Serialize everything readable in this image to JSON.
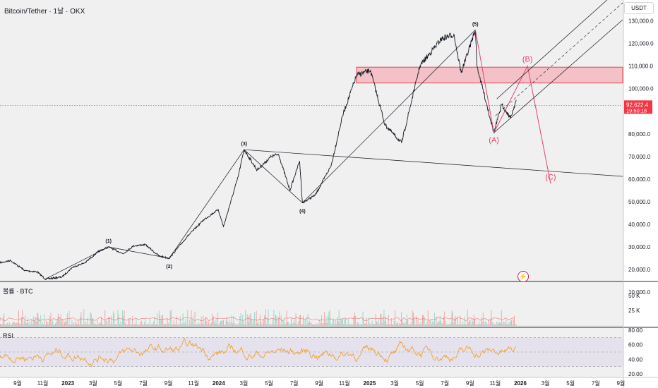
{
  "header": {
    "title": "Bitcoin/Tether · 1날 · OKX",
    "currency": "USDT"
  },
  "panes": {
    "volume_label": "볼륨 · BTC",
    "rsi_label": "RSI"
  },
  "colors": {
    "price": "#131722",
    "zone_fill": "#f3b8bf",
    "zone_border": "#e0464f",
    "corrective": "#e8436b",
    "rsi_line": "#f59b1a",
    "rsi_band": "#e0dcec",
    "last_price_bg": "#f23645",
    "logo": "#c2185b"
  },
  "chart_data": [
    {
      "type": "line",
      "name": "BTCUSDT price",
      "title": "Bitcoin/Tether · 1날 · OKX",
      "x_ticks": [
        "9월",
        "11월",
        "2023",
        "3월",
        "5월",
        "7월",
        "9월",
        "11월",
        "2024",
        "3월",
        "5월",
        "7월",
        "9월",
        "11월",
        "2025",
        "3월",
        "5월",
        "7월",
        "9월",
        "11월",
        "2026",
        "3월",
        "5월",
        "7월",
        "9월"
      ],
      "y_ticks": [
        "130,000.0",
        "120,000.0",
        "110,000.0",
        "100,000.0",
        "90,000.0",
        "80,000.0",
        "70,000.0",
        "60,000.0",
        "50,000.0",
        "40,000.0",
        "30,000.0",
        "20,000.0",
        "10,000.0"
      ],
      "ylim": [
        5000,
        135000
      ],
      "x_range": [
        "2022-07-20",
        "2026-10-05"
      ],
      "series": [
        {
          "x": [
            "2022-07-20",
            "2022-08-15",
            "2022-09-20",
            "2022-10-20",
            "2022-11-09",
            "2022-12-20",
            "2023-01-15",
            "2023-02-15",
            "2023-03-20",
            "2023-04-14",
            "2023-05-20",
            "2023-06-15",
            "2023-07-14",
            "2023-08-17",
            "2023-09-11",
            "2023-10-25",
            "2023-12-05",
            "2024-01-10",
            "2024-01-23",
            "2024-02-28",
            "2024-03-14",
            "2024-04-15",
            "2024-05-20",
            "2024-06-07",
            "2024-07-05",
            "2024-07-29",
            "2024-08-05",
            "2024-09-06",
            "2024-10-15",
            "2024-11-12",
            "2024-12-17",
            "2025-01-20",
            "2025-02-25",
            "2025-04-07",
            "2025-05-22",
            "2025-07-14",
            "2025-08-14",
            "2025-09-01",
            "2025-10-06",
            "2025-10-10",
            "2025-11-21",
            "2025-12-10",
            "2026-01-01",
            "2026-01-15"
          ],
          "values": [
            23000,
            24000,
            19500,
            19000,
            15800,
            16700,
            21000,
            23000,
            28000,
            30000,
            27000,
            30500,
            31000,
            26000,
            25000,
            34500,
            42000,
            46500,
            39000,
            61000,
            73000,
            64000,
            70000,
            71000,
            55000,
            68000,
            49500,
            53000,
            66000,
            88000,
            106000,
            108000,
            84000,
            76000,
            110000,
            122000,
            124000,
            107000,
            126000,
            110000,
            80500,
            93000,
            87000,
            95000
          ]
        }
      ],
      "annotations": [
        {
          "label": "(1)",
          "date": "2023-04-14",
          "price": 30000
        },
        {
          "label": "(2)",
          "date": "2023-09-11",
          "price": 25000
        },
        {
          "label": "(3)",
          "date": "2024-03-14",
          "price": 73000
        },
        {
          "label": "(4)",
          "date": "2024-08-05",
          "price": 49500
        },
        {
          "label": "(5)",
          "date": "2025-10-06",
          "price": 126000
        },
        {
          "label": "(A)",
          "date": "2025-11-21",
          "price": 80500
        },
        {
          "label": "(B)",
          "date": "2026-02-12",
          "price": 110000
        },
        {
          "label": "(C)",
          "date": "2026-04-10",
          "price": 58000
        }
      ],
      "resistance_zone": [
        102500,
        109500
      ],
      "last_price": "92,622.4",
      "countdown": "19:50:18"
    },
    {
      "type": "bar",
      "name": "볼륨 · BTC",
      "y_ticks": [
        "50 K",
        "25 K"
      ]
    },
    {
      "type": "line",
      "name": "RSI",
      "y_ticks": [
        "80.00",
        "60.00",
        "40.00",
        "20.00"
      ],
      "ylim": [
        16,
        84
      ],
      "bands": [
        30,
        70
      ],
      "mid": 50
    }
  ]
}
